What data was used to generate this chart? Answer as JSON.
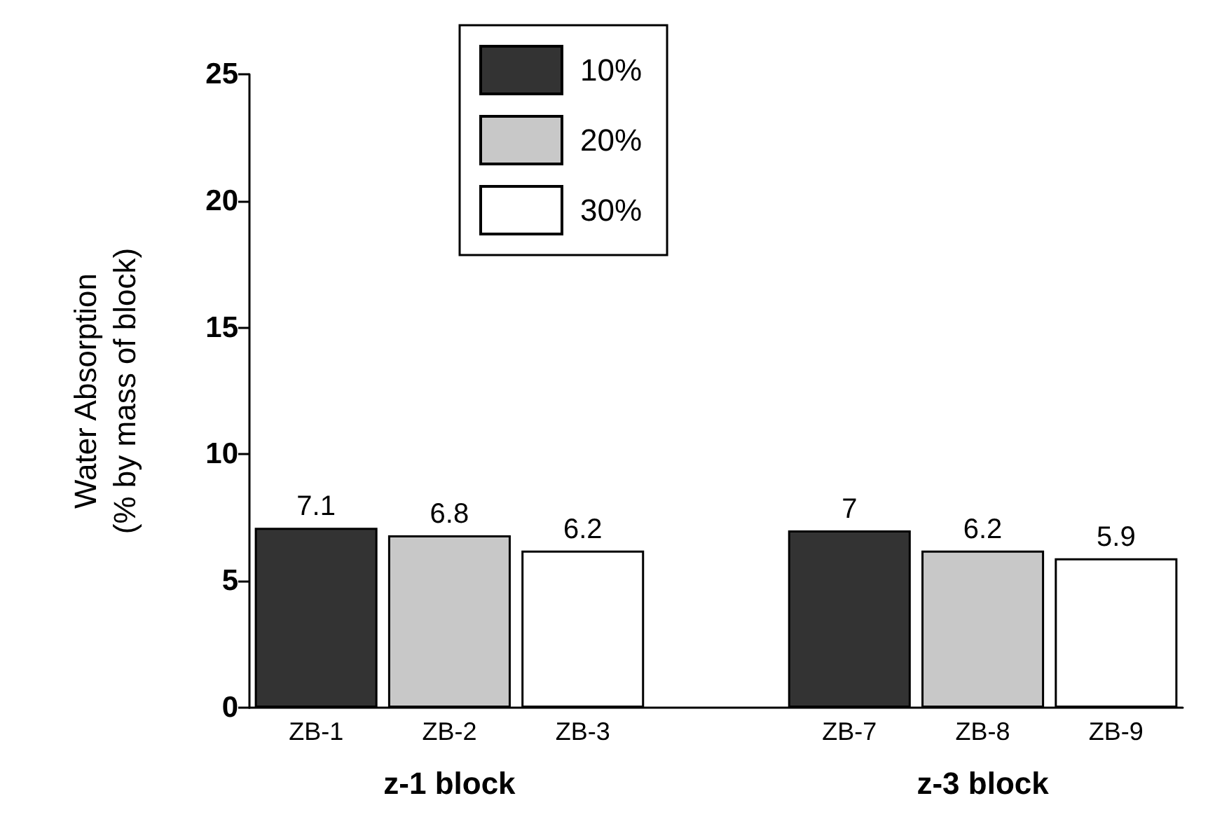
{
  "chart_data": {
    "type": "bar",
    "ylabel": "Water Absorption\n(% by mass of block)",
    "categories": [
      "ZB-1",
      "ZB-2",
      "ZB-3",
      null,
      "ZB-7",
      "ZB-8",
      "ZB-9"
    ],
    "series": [
      {
        "name": "10%",
        "color": "#333333",
        "values": [
          7.1,
          null,
          null,
          null,
          7,
          null,
          null
        ]
      },
      {
        "name": "20%",
        "color": "#c8c8c8",
        "values": [
          null,
          6.8,
          null,
          null,
          null,
          6.2,
          null
        ]
      },
      {
        "name": "30%",
        "color": "#ffffff",
        "values": [
          null,
          null,
          6.2,
          null,
          null,
          null,
          5.9
        ]
      }
    ],
    "annotations": [
      "z-1 block",
      "z-3 block"
    ],
    "ylim": [
      0,
      25
    ],
    "yticks": [
      0,
      5,
      10,
      15,
      20,
      25
    ],
    "grid": false,
    "legend": "top left",
    "data_labels": true
  }
}
